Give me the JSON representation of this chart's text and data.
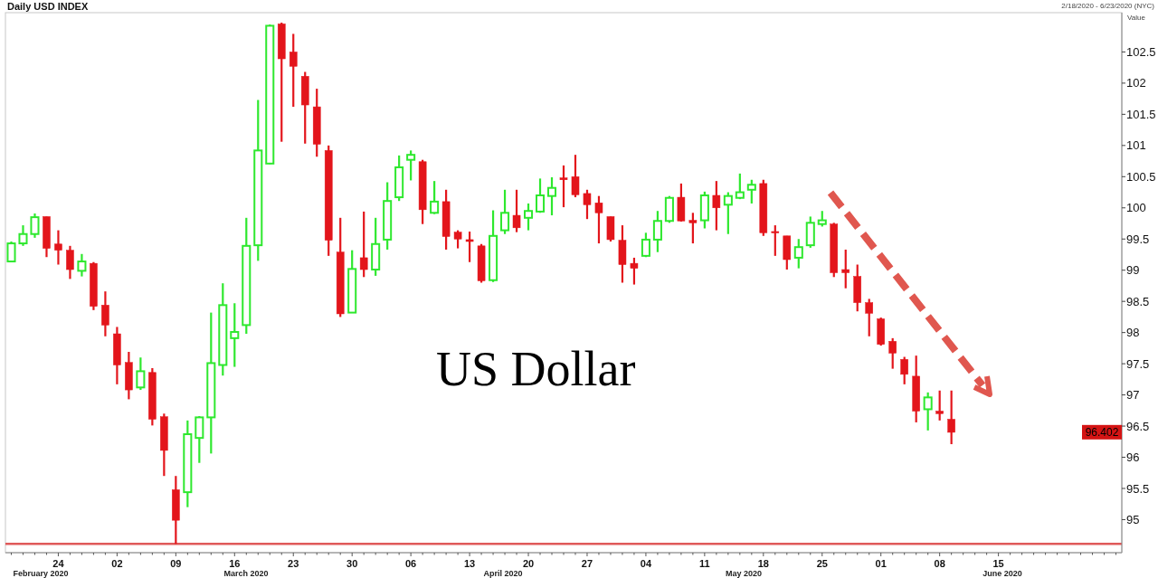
{
  "chart_data": {
    "type": "candlestick",
    "title": "Daily USD INDEX",
    "subtitle": "2/18/2020 - 6/23/2020 (NYC)",
    "ylabel": "Value",
    "categories": [
      null,
      null,
      null,
      null,
      "24",
      null,
      null,
      null,
      null,
      "02",
      null,
      null,
      null,
      null,
      "09",
      null,
      null,
      null,
      null,
      "16",
      null,
      null,
      null,
      null,
      "23",
      null,
      null,
      null,
      null,
      "30",
      null,
      null,
      null,
      null,
      "06",
      null,
      null,
      null,
      null,
      "13",
      null,
      null,
      null,
      null,
      "20",
      null,
      null,
      null,
      null,
      "27",
      null,
      null,
      null,
      null,
      "04",
      null,
      null,
      null,
      null,
      "11",
      null,
      null,
      null,
      null,
      "18",
      null,
      null,
      null,
      null,
      "25",
      null,
      null,
      null,
      null,
      "01",
      null,
      null,
      null,
      null,
      "08",
      null,
      null,
      null,
      null,
      "15",
      null,
      null,
      null,
      null,
      null,
      null,
      null,
      null,
      null,
      null
    ],
    "ohlc": [
      [
        99.14,
        99.46,
        99.13,
        99.43
      ],
      [
        99.43,
        99.72,
        99.39,
        99.58
      ],
      [
        99.58,
        99.91,
        99.52,
        99.85
      ],
      [
        99.86,
        99.86,
        99.21,
        99.35
      ],
      [
        99.42,
        99.64,
        99.09,
        99.32
      ],
      [
        99.32,
        99.39,
        98.86,
        99.01
      ],
      [
        98.99,
        99.26,
        98.9,
        99.14
      ],
      [
        99.11,
        99.13,
        98.36,
        98.42
      ],
      [
        98.44,
        98.66,
        97.94,
        98.12
      ],
      [
        97.98,
        98.09,
        97.17,
        97.48
      ],
      [
        97.52,
        97.69,
        96.93,
        97.08
      ],
      [
        97.12,
        97.6,
        97.08,
        97.38
      ],
      [
        97.36,
        97.43,
        96.51,
        96.61
      ],
      [
        96.65,
        96.7,
        95.7,
        96.11
      ],
      [
        95.48,
        95.7,
        94.61,
        94.99
      ],
      [
        95.44,
        96.59,
        95.2,
        96.37
      ],
      [
        96.31,
        96.66,
        95.91,
        96.64
      ],
      [
        96.64,
        98.32,
        96.06,
        97.51
      ],
      [
        97.48,
        98.79,
        97.31,
        98.44
      ],
      [
        97.91,
        98.47,
        97.45,
        98.01
      ],
      [
        98.12,
        99.84,
        97.98,
        99.39
      ],
      [
        99.4,
        101.73,
        99.15,
        100.92
      ],
      [
        100.71,
        102.94,
        100.7,
        102.92
      ],
      [
        102.95,
        102.97,
        101.06,
        102.39
      ],
      [
        102.5,
        102.79,
        101.62,
        102.27
      ],
      [
        102.11,
        102.18,
        101.03,
        101.65
      ],
      [
        101.62,
        101.91,
        100.82,
        101.02
      ],
      [
        100.92,
        101.0,
        99.23,
        99.48
      ],
      [
        99.29,
        99.84,
        98.25,
        98.3
      ],
      [
        98.32,
        99.32,
        98.32,
        99.02
      ],
      [
        99.2,
        99.94,
        98.89,
        99.01
      ],
      [
        99.01,
        99.84,
        98.91,
        99.42
      ],
      [
        99.49,
        100.41,
        99.33,
        100.11
      ],
      [
        100.17,
        100.84,
        100.11,
        100.65
      ],
      [
        100.77,
        100.92,
        100.44,
        100.85
      ],
      [
        100.74,
        100.77,
        99.74,
        99.97
      ],
      [
        99.92,
        100.43,
        99.9,
        100.1
      ],
      [
        100.1,
        100.29,
        99.33,
        99.54
      ],
      [
        99.61,
        99.64,
        99.35,
        99.5
      ],
      [
        99.49,
        99.62,
        99.13,
        99.46
      ],
      [
        99.39,
        99.42,
        98.8,
        98.83
      ],
      [
        98.84,
        99.96,
        98.81,
        99.55
      ],
      [
        99.64,
        100.29,
        99.58,
        99.92
      ],
      [
        99.88,
        100.29,
        99.61,
        99.68
      ],
      [
        99.84,
        100.07,
        99.64,
        99.95
      ],
      [
        99.94,
        100.47,
        99.92,
        100.2
      ],
      [
        100.19,
        100.49,
        99.88,
        100.32
      ],
      [
        100.48,
        100.68,
        100.01,
        100.45
      ],
      [
        100.5,
        100.85,
        100.17,
        100.21
      ],
      [
        100.23,
        100.29,
        99.82,
        100.05
      ],
      [
        100.08,
        100.19,
        99.43,
        99.92
      ],
      [
        99.86,
        99.86,
        99.46,
        99.49
      ],
      [
        99.48,
        99.72,
        98.8,
        99.09
      ],
      [
        99.11,
        99.2,
        98.77,
        99.03
      ],
      [
        99.23,
        99.6,
        99.21,
        99.49
      ],
      [
        99.49,
        99.95,
        99.29,
        99.79
      ],
      [
        99.79,
        100.19,
        99.76,
        100.16
      ],
      [
        100.17,
        100.39,
        99.78,
        99.79
      ],
      [
        99.8,
        99.92,
        99.43,
        99.76
      ],
      [
        99.8,
        100.26,
        99.67,
        100.2
      ],
      [
        100.2,
        100.43,
        99.64,
        100.0
      ],
      [
        100.05,
        100.25,
        99.58,
        100.19
      ],
      [
        100.16,
        100.55,
        100.14,
        100.25
      ],
      [
        100.29,
        100.45,
        100.07,
        100.37
      ],
      [
        100.39,
        100.45,
        99.55,
        99.6
      ],
      [
        99.62,
        99.72,
        99.23,
        99.6
      ],
      [
        99.55,
        99.55,
        99.01,
        99.17
      ],
      [
        99.2,
        99.5,
        99.03,
        99.37
      ],
      [
        99.4,
        99.86,
        99.36,
        99.76
      ],
      [
        99.74,
        99.95,
        99.7,
        99.8
      ],
      [
        99.74,
        99.76,
        98.89,
        98.96
      ],
      [
        99.01,
        99.33,
        98.71,
        98.96
      ],
      [
        98.9,
        99.09,
        98.34,
        98.48
      ],
      [
        98.48,
        98.54,
        97.94,
        98.31
      ],
      [
        98.22,
        98.24,
        97.79,
        97.81
      ],
      [
        97.86,
        97.91,
        97.42,
        97.67
      ],
      [
        97.57,
        97.61,
        97.17,
        97.33
      ],
      [
        97.3,
        97.63,
        96.56,
        96.74
      ],
      [
        96.77,
        97.04,
        96.43,
        96.96
      ],
      [
        96.74,
        97.07,
        96.59,
        96.7
      ],
      [
        96.61,
        97.07,
        96.21,
        96.4
      ],
      null,
      null,
      null,
      null,
      null,
      null,
      null,
      null,
      null,
      null,
      null,
      null,
      null,
      null
    ],
    "colors": [
      "#2ee82e",
      "#2ee82e",
      "#2ee82e",
      "#e3151b",
      "#e3151b",
      "#e3151b",
      "#2ee82e",
      "#e3151b",
      "#e3151b",
      "#e3151b",
      "#e3151b",
      "#2ee82e",
      "#e3151b",
      "#e3151b",
      "#e3151b",
      "#2ee82e",
      "#2ee82e",
      "#2ee82e",
      "#2ee82e",
      "#2ee82e",
      "#2ee82e",
      "#2ee82e",
      "#2ee82e",
      "#e3151b",
      "#e3151b",
      "#e3151b",
      "#e3151b",
      "#e3151b",
      "#e3151b",
      "#2ee82e",
      "#e3151b",
      "#2ee82e",
      "#2ee82e",
      "#2ee82e",
      "#2ee82e",
      "#e3151b",
      "#2ee82e",
      "#e3151b",
      "#e3151b",
      "#e3151b",
      "#e3151b",
      "#2ee82e",
      "#2ee82e",
      "#e3151b",
      "#2ee82e",
      "#2ee82e",
      "#2ee82e",
      "#e3151b",
      "#e3151b",
      "#e3151b",
      "#e3151b",
      "#e3151b",
      "#e3151b",
      "#e3151b",
      "#2ee82e",
      "#2ee82e",
      "#2ee82e",
      "#e3151b",
      "#e3151b",
      "#2ee82e",
      "#e3151b",
      "#2ee82e",
      "#2ee82e",
      "#2ee82e",
      "#e3151b",
      "#e3151b",
      "#e3151b",
      "#2ee82e",
      "#2ee82e",
      "#2ee82e",
      "#e3151b",
      "#e3151b",
      "#e3151b",
      "#e3151b",
      "#e3151b",
      "#e3151b",
      "#e3151b",
      "#e3151b",
      "#2ee82e",
      "#e3151b",
      "#e3151b",
      null,
      null,
      null,
      null,
      null,
      null,
      null,
      null,
      null,
      null,
      null,
      null,
      null,
      null
    ],
    "ylim": [
      94.47,
      103.13
    ],
    "yticks": [
      95,
      95.5,
      96,
      96.5,
      97,
      97.5,
      98,
      98.5,
      99,
      99.5,
      100,
      100.5,
      101,
      101.5,
      102,
      102.5
    ],
    "ref_lines": [
      {
        "axis": "y",
        "value": 94.61,
        "color": "#e05a5a"
      }
    ],
    "annotations": [
      "US Dollar",
      {
        "text": "96.402",
        "y": 96.402
      },
      "February 2020",
      "March 2020",
      "April 2020",
      "May 2020",
      "June 2020"
    ]
  }
}
